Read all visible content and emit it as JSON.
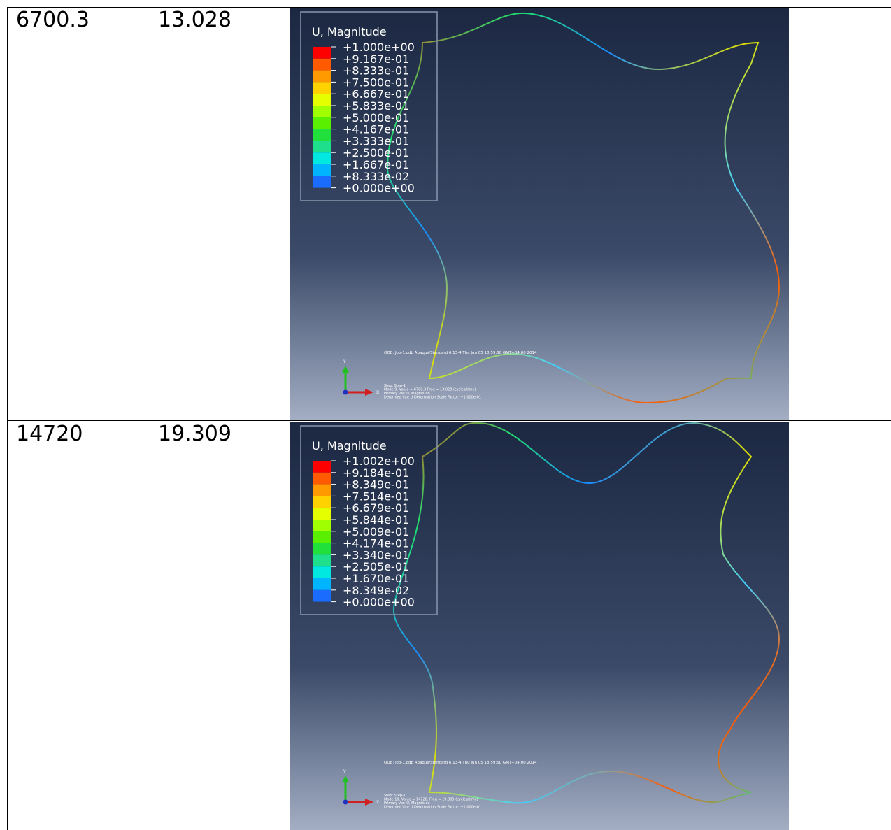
{
  "table": {
    "rows": [
      {
        "eigenvalue": "6700.3",
        "frequency": "13.028",
        "figure": {
          "legend_title": "U, Magnitude",
          "legend_labels": [
            "+1.000e+00",
            "+9.167e-01",
            "+8.333e-01",
            "+7.500e-01",
            "+6.667e-01",
            "+5.833e-01",
            "+5.000e-01",
            "+4.167e-01",
            "+3.333e-01",
            "+2.500e-01",
            "+1.667e-01",
            "+8.333e-02",
            "+0.000e+00"
          ],
          "info": [
            "ODB: Job-1.odb    Abaqus/Standard 6.13-4    Thu Jun 05 18:59:50 GMT+04:00 2014",
            "Step: Step-1",
            "Mode      9: Value =   6700.3    Freq =   13.028    (cycles/time)",
            "Primary Var: U, Magnitude",
            "Deformed Var: U   Deformation Scale Factor: +1.000e-01"
          ],
          "axes": [
            "Y",
            "X"
          ]
        }
      },
      {
        "eigenvalue": "14720",
        "frequency": "19.309",
        "figure": {
          "legend_title": "U, Magnitude",
          "legend_labels": [
            "+1.002e+00",
            "+9.184e-01",
            "+8.349e-01",
            "+7.514e-01",
            "+6.679e-01",
            "+5.844e-01",
            "+5.009e-01",
            "+4.174e-01",
            "+3.340e-01",
            "+2.505e-01",
            "+1.670e-01",
            "+8.349e-02",
            "+0.000e+00"
          ],
          "info": [
            "ODB: Job-1.odb    Abaqus/Standard 6.13-4    Thu Jun 05 18:59:50 GMT+04:00 2014",
            "Step: Step-1",
            "Mode     10: Value =   14720.    Freq =   19.309    (cycles/time)",
            "Primary Var: U, Magnitude",
            "Deformed Var: U   Deformation Scale Factor: +1.000e-01"
          ],
          "axes": [
            "Y",
            "X"
          ]
        }
      }
    ]
  }
}
